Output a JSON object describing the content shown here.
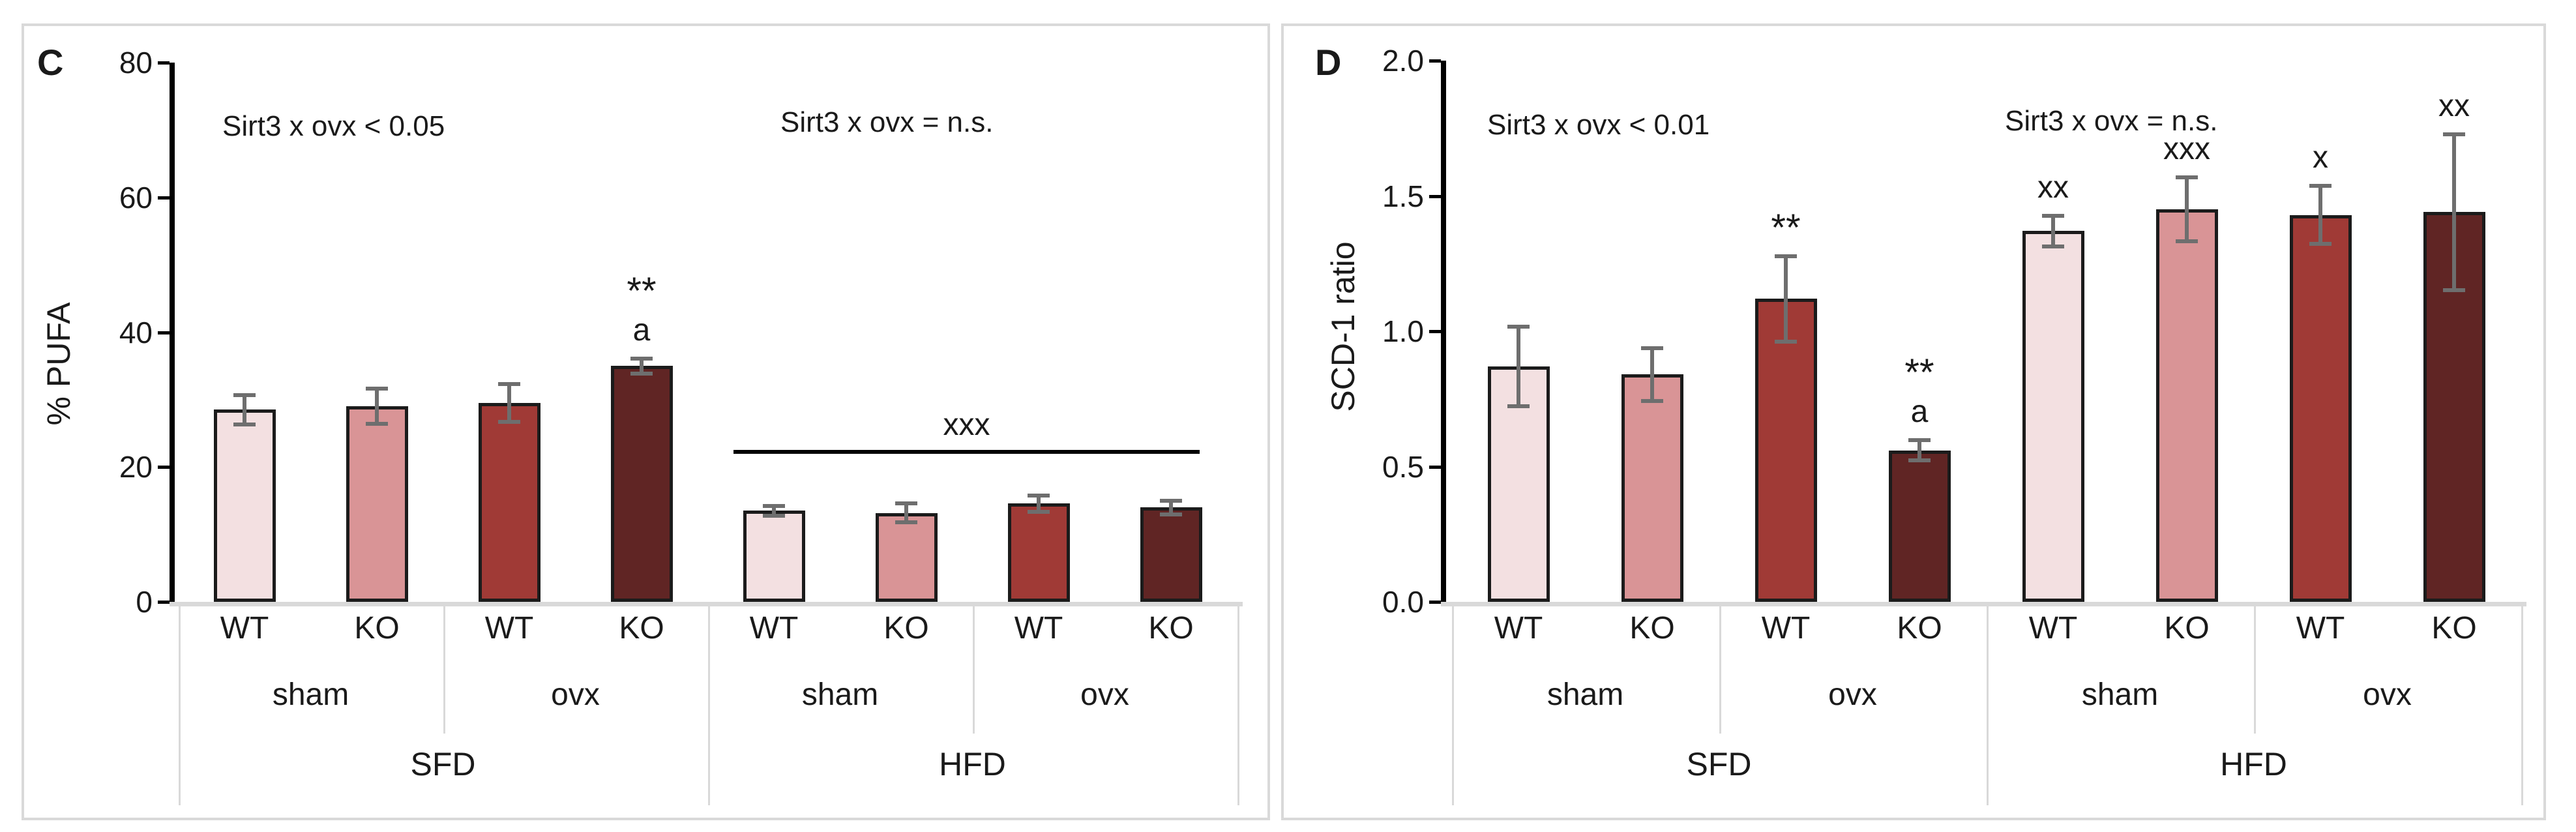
{
  "figure": {
    "colors": {
      "bar_fill_sequence": [
        "#f3e0e1",
        "#d99496",
        "#a03a36",
        "#602524"
      ],
      "bar_border": "#1b1b1b",
      "error_bar": "#6e6e6e",
      "panel_border": "#d9d9d9",
      "table_line": "#d9d9d9",
      "axis": "#000000"
    },
    "panels": [
      {
        "letter": "C",
        "y_axis_title": "% PUFA",
        "stat_note_left": "Sirt3 x ovx < 0.05",
        "stat_note_right": "Sirt3 x ovx = n.s.",
        "chart_data": {
          "type": "bar",
          "ylabel": "% PUFA",
          "ylim": [
            0,
            80
          ],
          "yticks": [
            0,
            20,
            40,
            60,
            80
          ],
          "ytick_labels": [
            "0",
            "20",
            "40",
            "60",
            "80"
          ],
          "genotype_labels": [
            "WT",
            "KO",
            "WT",
            "KO",
            "WT",
            "KO",
            "WT",
            "KO"
          ],
          "surgery_labels": [
            "sham",
            "ovx",
            "sham",
            "ovx"
          ],
          "diet_labels": [
            "SFD",
            "HFD"
          ],
          "values": [
            28.5,
            29,
            29.5,
            35,
            13.5,
            13.2,
            14.6,
            14
          ],
          "errors": [
            2.3,
            2.7,
            2.9,
            1.2,
            0.8,
            1.5,
            1.3,
            1.1
          ],
          "sig_labels": [
            [],
            [],
            [],
            [
              "**",
              "a"
            ],
            [],
            [],
            [],
            []
          ],
          "span_annotation": {
            "label": "xxx",
            "start_bar": 4,
            "end_bar": 7,
            "y_value": 22.5
          }
        }
      },
      {
        "letter": "D",
        "y_axis_title": "SCD-1 ratio",
        "stat_note_left": "Sirt3 x ovx < 0.01",
        "stat_note_right": "Sirt3 x ovx = n.s.",
        "chart_data": {
          "type": "bar",
          "ylabel": "SCD-1 ratio",
          "ylim": [
            0,
            2
          ],
          "yticks": [
            0,
            0.5,
            1,
            1.5,
            2
          ],
          "ytick_labels": [
            "0.0",
            "0.5",
            "1.0",
            "1.5",
            "2.0"
          ],
          "genotype_labels": [
            "WT",
            "KO",
            "WT",
            "KO",
            "WT",
            "KO",
            "WT",
            "KO"
          ],
          "surgery_labels": [
            "sham",
            "ovx",
            "sham",
            "ovx"
          ],
          "diet_labels": [
            "SFD",
            "HFD"
          ],
          "values": [
            0.87,
            0.84,
            1.12,
            0.56,
            1.37,
            1.45,
            1.43,
            1.44
          ],
          "errors": [
            0.15,
            0.1,
            0.16,
            0.04,
            0.06,
            0.12,
            0.11,
            0.29
          ],
          "sig_labels": [
            [],
            [],
            [
              "**"
            ],
            [
              "**",
              "a"
            ],
            [
              "xx"
            ],
            [
              "xxx"
            ],
            [
              "x"
            ],
            [
              "xx"
            ]
          ],
          "span_annotation": null
        }
      }
    ]
  }
}
